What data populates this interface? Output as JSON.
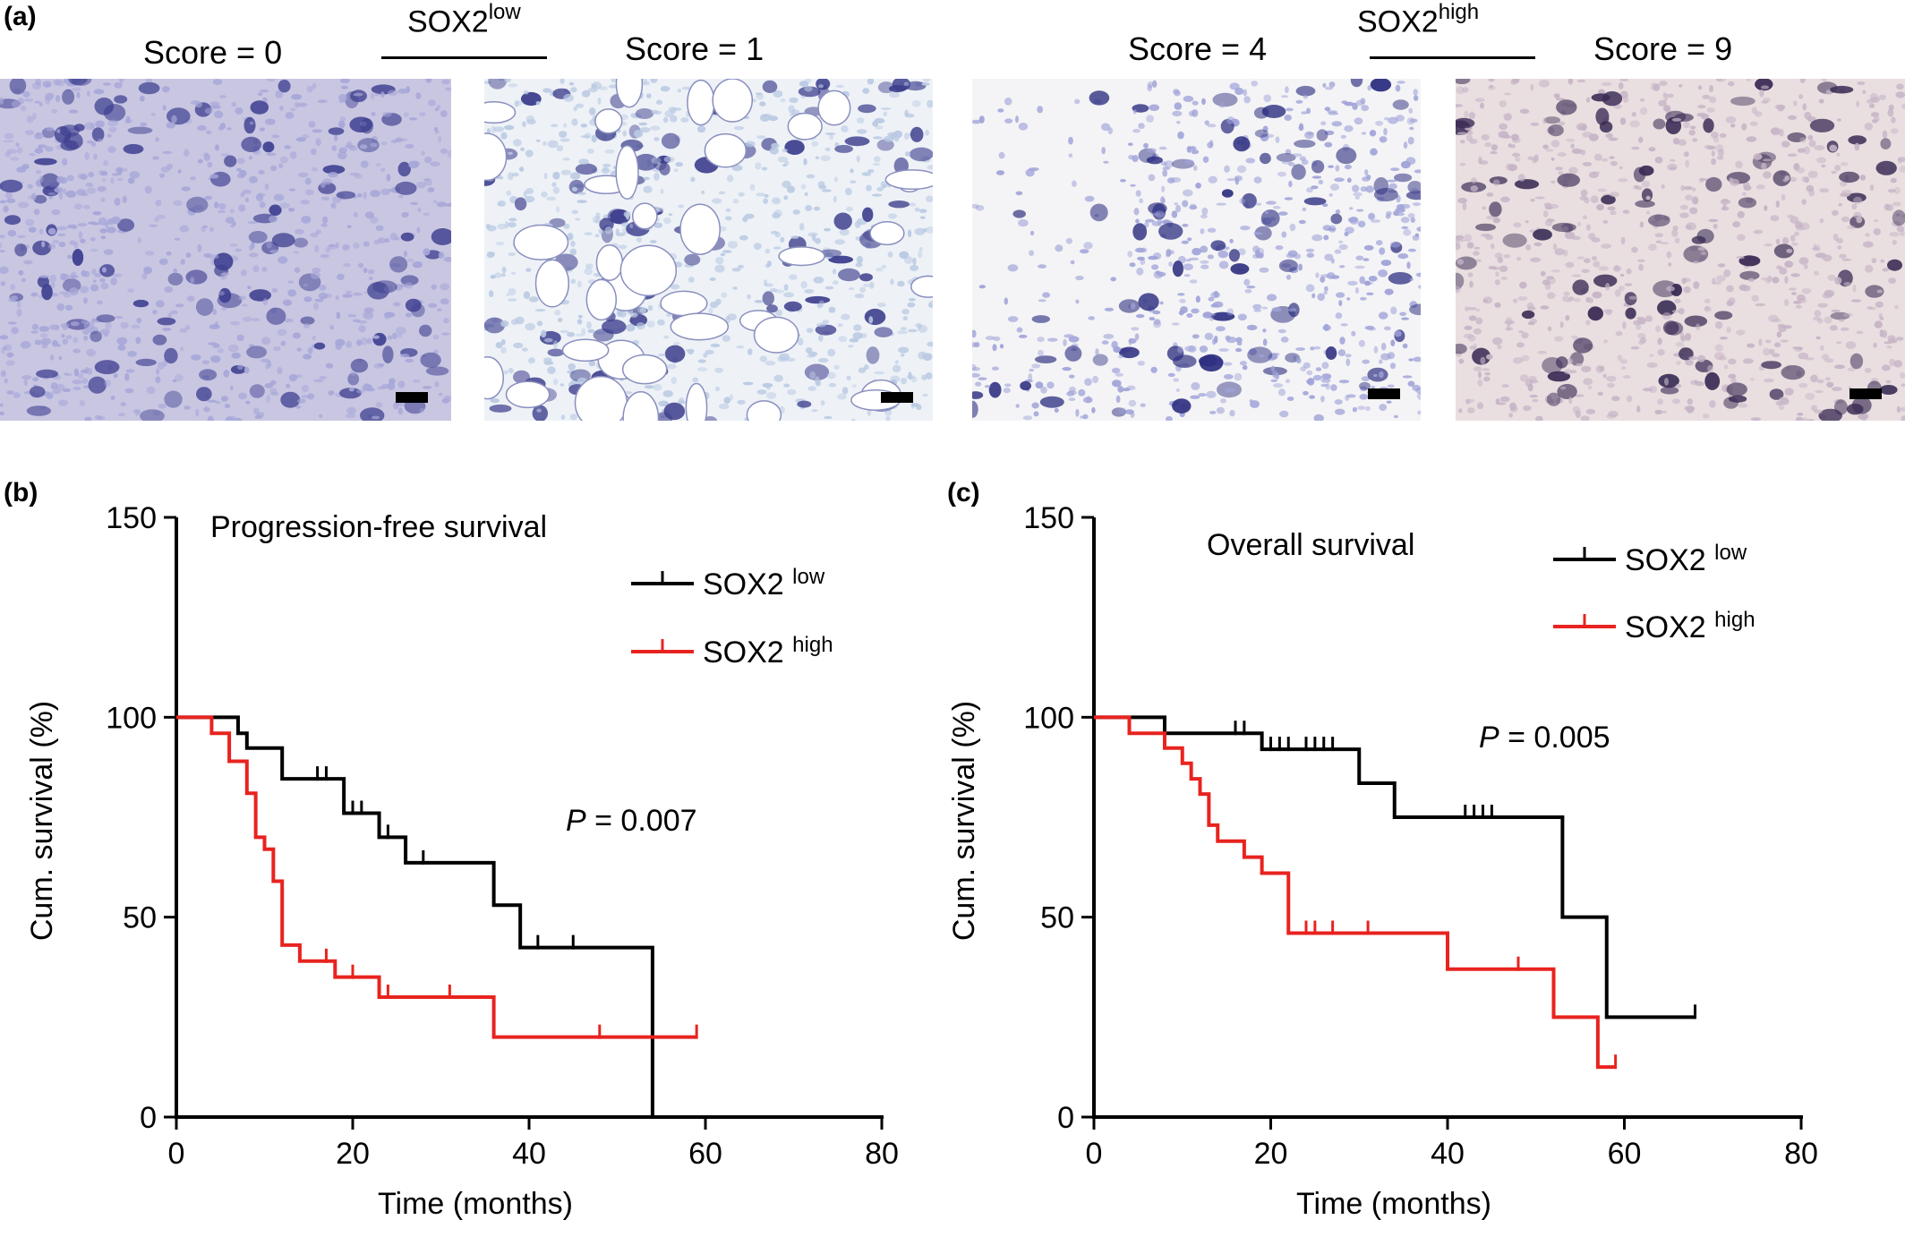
{
  "panel_a": {
    "letter": "(a)",
    "group_low": {
      "base": "SOX2",
      "sup": "low"
    },
    "group_high": {
      "base": "SOX2",
      "sup": "high"
    },
    "images": [
      {
        "score": "Score = 0",
        "tone": "#a6a6d8",
        "stain": "#3e3f90",
        "bg": "#c9c6e2"
      },
      {
        "score": "Score = 1",
        "tone": "#b9c9e2",
        "stain": "#3c3d8c",
        "bg": "#eef2f7"
      },
      {
        "score": "Score = 4",
        "tone": "#9fa2d8",
        "stain": "#2d2e80",
        "bg": "#f4f4f6"
      },
      {
        "score": "Score = 9",
        "tone": "#c6b4c6",
        "stain": "#3a2c55",
        "bg": "#e9dfe0"
      }
    ]
  },
  "chart_data": [
    {
      "type": "line",
      "panel": "(b)",
      "title": "Progression-free survival",
      "xlabel": "Time (months)",
      "ylabel": "Cum. survival (%)",
      "xlim": [
        0,
        80
      ],
      "ylim": [
        0,
        150
      ],
      "xticks": [
        0,
        20,
        40,
        60,
        80
      ],
      "yticks": [
        0,
        50,
        100,
        150
      ],
      "legend_position": "top-right",
      "annotation": {
        "label": "P",
        "text": " = 0.007"
      },
      "series": [
        {
          "name": "SOX2 low",
          "name_base": "SOX2",
          "name_sup": "low",
          "color": "#000000",
          "steps": [
            [
              0,
              100
            ],
            [
              7,
              96
            ],
            [
              8,
              92.3
            ],
            [
              12,
              84.6
            ],
            [
              19,
              76
            ],
            [
              20,
              76
            ],
            [
              23,
              70
            ],
            [
              26,
              63.6
            ],
            [
              36,
              53
            ],
            [
              39,
              42.4
            ],
            [
              54,
              0
            ]
          ],
          "censored": [
            [
              16,
              84.6
            ],
            [
              17,
              84.6
            ],
            [
              20,
              76
            ],
            [
              21,
              76
            ],
            [
              24,
              70
            ],
            [
              28,
              63.6
            ],
            [
              41,
              42.4
            ],
            [
              45,
              42.4
            ]
          ]
        },
        {
          "name": "SOX2 high",
          "name_base": "SOX2",
          "name_sup": "high",
          "color": "#e8231f",
          "steps": [
            [
              0,
              100
            ],
            [
              4,
              96
            ],
            [
              6,
              89
            ],
            [
              8,
              81
            ],
            [
              9,
              70
            ],
            [
              10,
              67
            ],
            [
              11,
              59
            ],
            [
              12,
              43
            ],
            [
              14,
              39
            ],
            [
              18,
              35
            ],
            [
              23,
              30
            ],
            [
              36,
              20
            ],
            [
              59,
              20
            ]
          ],
          "censored": [
            [
              17,
              39
            ],
            [
              20,
              35
            ],
            [
              24,
              30
            ],
            [
              31,
              30
            ],
            [
              48,
              20
            ],
            [
              59,
              20
            ]
          ]
        }
      ]
    },
    {
      "type": "line",
      "panel": "(c)",
      "title": "Overall survival",
      "xlabel": "Time (months)",
      "ylabel": "Cum. survival (%)",
      "xlim": [
        0,
        80
      ],
      "ylim": [
        0,
        150
      ],
      "xticks": [
        0,
        20,
        40,
        60,
        80
      ],
      "yticks": [
        0,
        50,
        100,
        150
      ],
      "legend_position": "top-right",
      "annotation": {
        "label": "P",
        "text": " = 0.005"
      },
      "series": [
        {
          "name": "SOX2 low",
          "name_base": "SOX2",
          "name_sup": "low",
          "color": "#000000",
          "steps": [
            [
              0,
              100
            ],
            [
              8,
              96
            ],
            [
              19,
              92
            ],
            [
              30,
              83.5
            ],
            [
              34,
              75
            ],
            [
              53,
              50
            ],
            [
              58,
              25
            ],
            [
              68,
              25
            ]
          ],
          "censored": [
            [
              16,
              96
            ],
            [
              17,
              96
            ],
            [
              20,
              92
            ],
            [
              21,
              92
            ],
            [
              22,
              92
            ],
            [
              24,
              92
            ],
            [
              25,
              92
            ],
            [
              26,
              92
            ],
            [
              27,
              92
            ],
            [
              42,
              75
            ],
            [
              43,
              75
            ],
            [
              44,
              75
            ],
            [
              45,
              75
            ],
            [
              68,
              25
            ]
          ]
        },
        {
          "name": "SOX2 high",
          "name_base": "SOX2",
          "name_sup": "high",
          "color": "#e8231f",
          "steps": [
            [
              0,
              100
            ],
            [
              4,
              96
            ],
            [
              8,
              92.3
            ],
            [
              10,
              88.5
            ],
            [
              11,
              84.6
            ],
            [
              12,
              80.8
            ],
            [
              13,
              73
            ],
            [
              14,
              69
            ],
            [
              17,
              65
            ],
            [
              19,
              61
            ],
            [
              22,
              46
            ],
            [
              40,
              37
            ],
            [
              52,
              25
            ],
            [
              57,
              12.5
            ],
            [
              59,
              12.5
            ]
          ],
          "censored": [
            [
              24,
              46
            ],
            [
              25,
              46
            ],
            [
              27,
              46
            ],
            [
              31,
              46
            ],
            [
              48,
              37
            ],
            [
              59,
              12.5
            ]
          ]
        }
      ]
    }
  ]
}
